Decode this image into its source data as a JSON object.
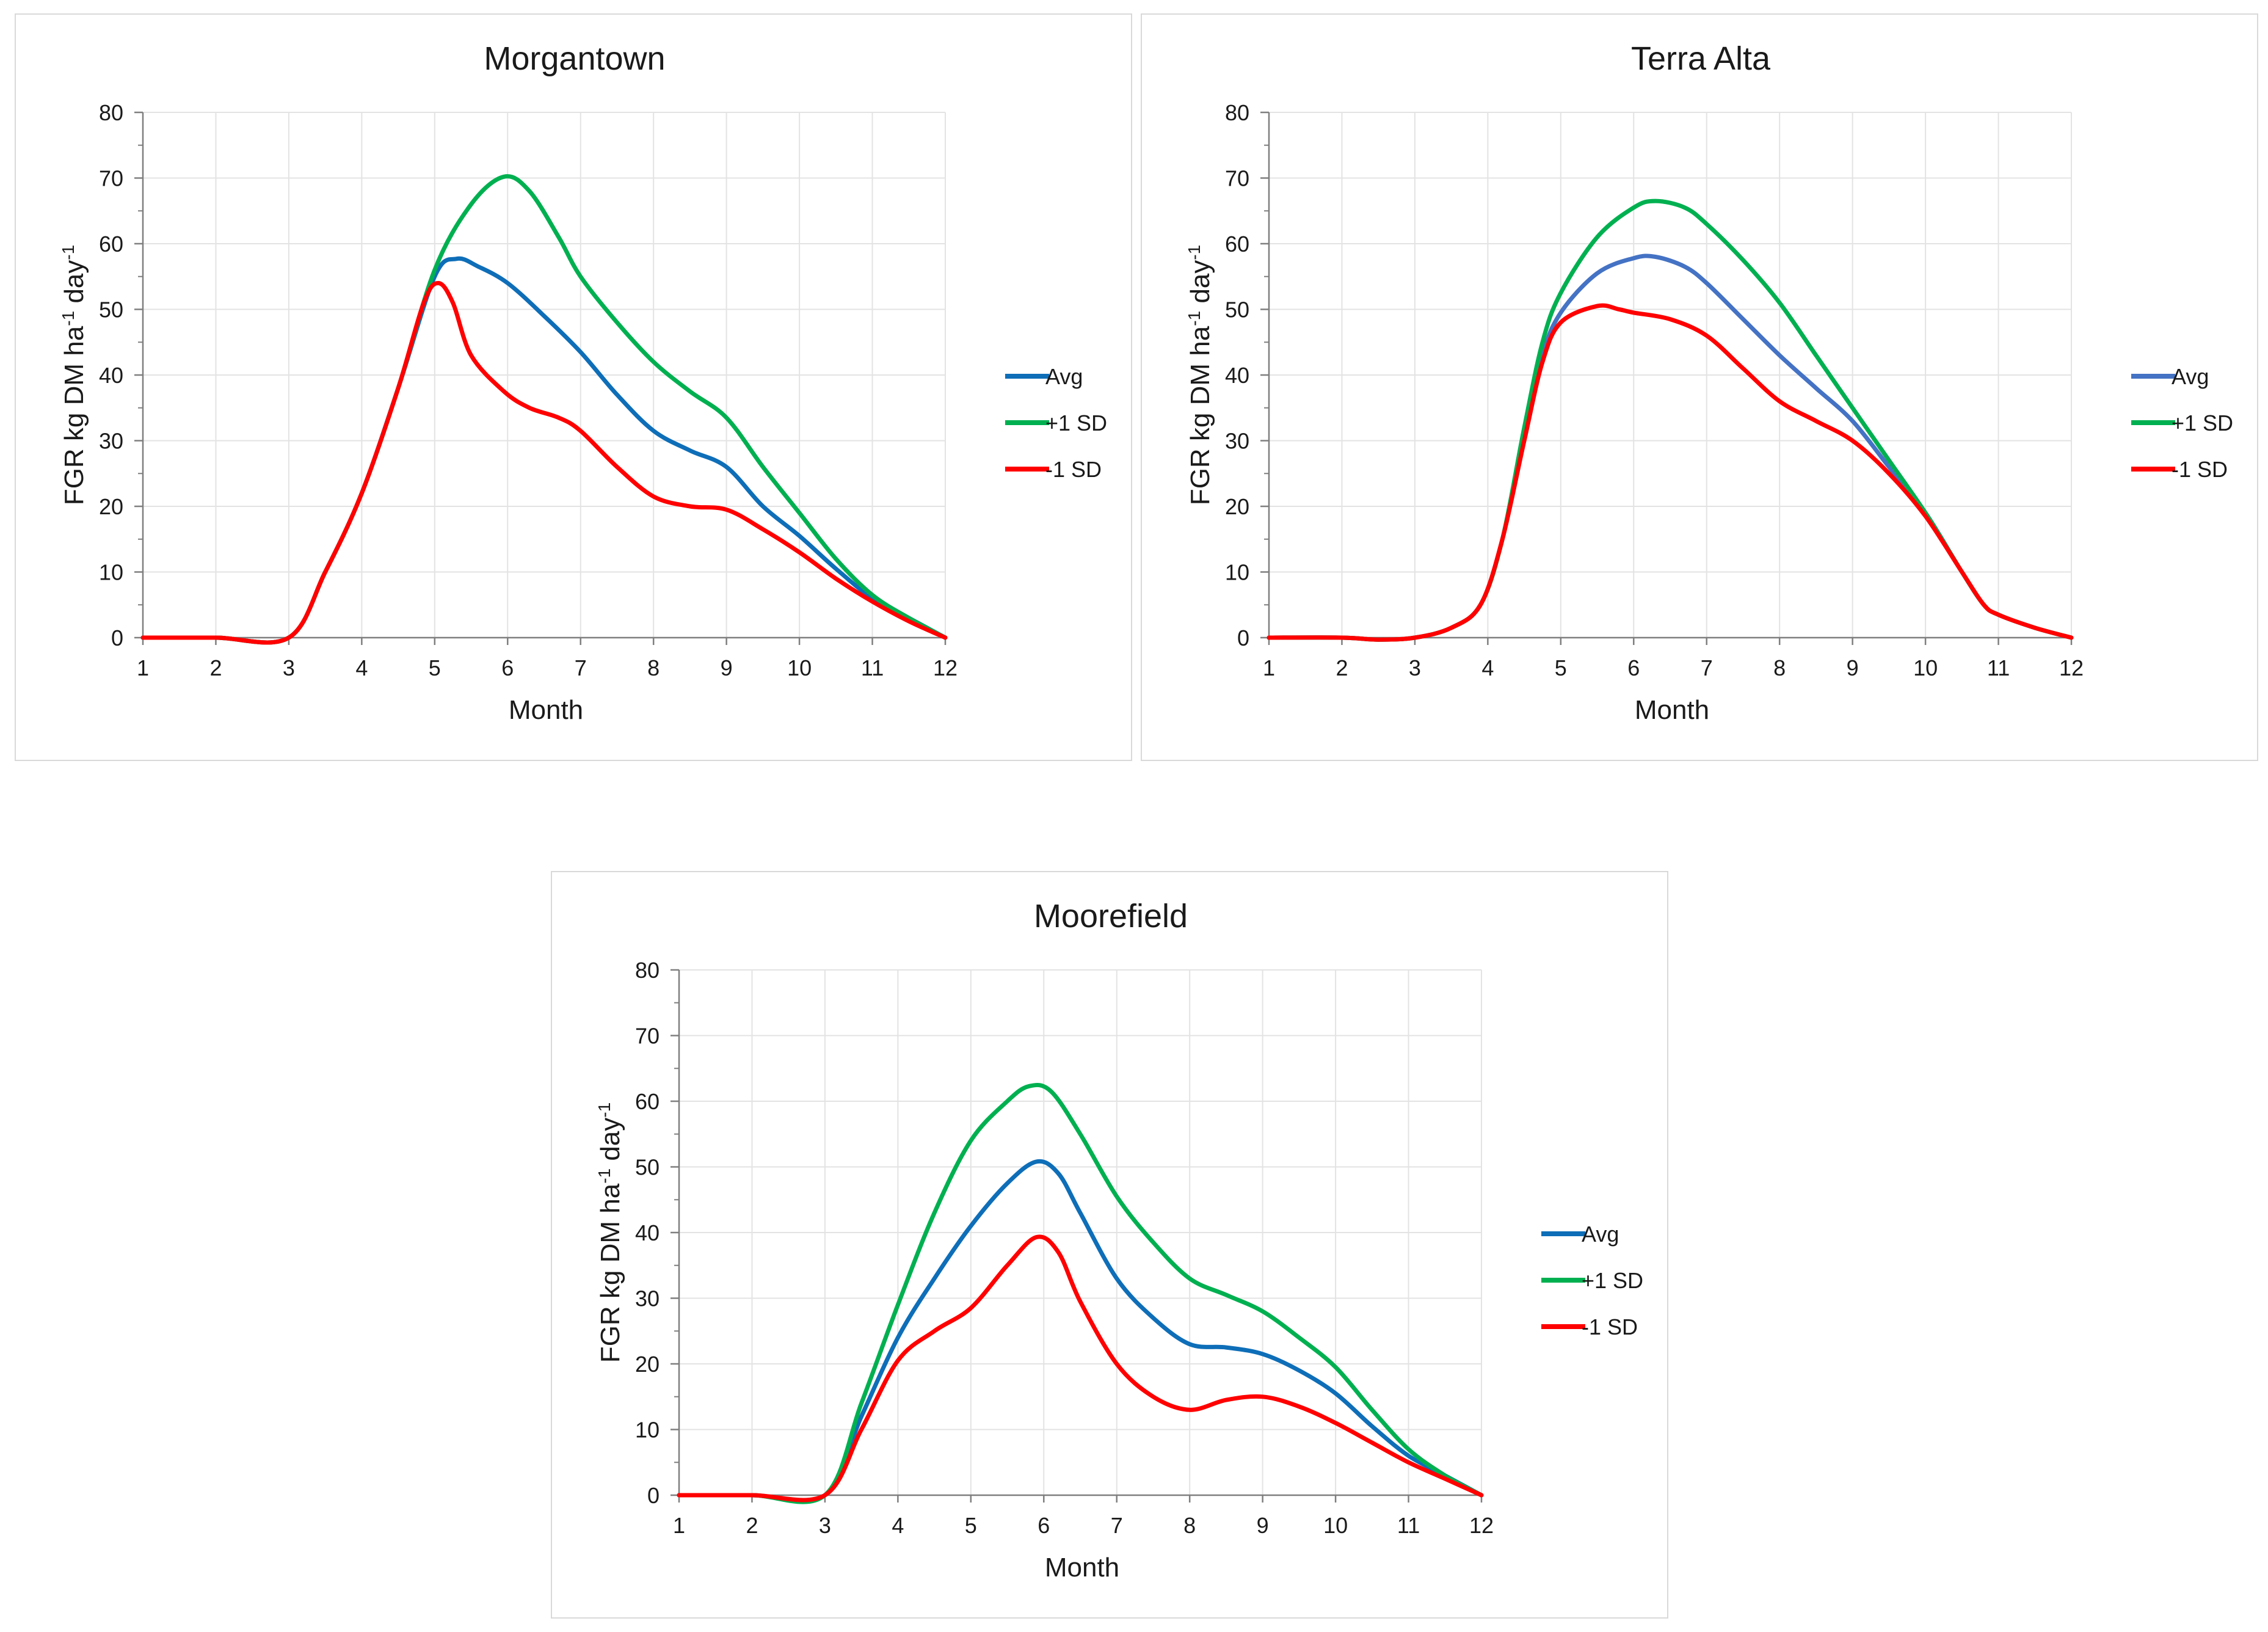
{
  "chart_data": [
    {
      "type": "line",
      "title": "Morgantown",
      "xlabel": "Month",
      "ylabel": "FGR kg DM ha",
      "ylabel_sup1": "-1",
      "ylabel_mid": " day",
      "ylabel_sup2": "-1",
      "xlim": [
        1,
        12
      ],
      "ylim": [
        0,
        80
      ],
      "x_ticks": [
        "1",
        "2",
        "3",
        "4",
        "5",
        "6",
        "7",
        "8",
        "9",
        "10",
        "11",
        "12"
      ],
      "y_ticks": [
        "0",
        "10",
        "20",
        "30",
        "40",
        "50",
        "60",
        "70",
        "80"
      ],
      "grid": true,
      "legend_position": "right",
      "series": [
        {
          "name": "Avg",
          "color": "#0e6eb8",
          "points": [
            [
              1,
              0
            ],
            [
              2,
              0
            ],
            [
              3,
              0
            ],
            [
              3.5,
              10
            ],
            [
              4,
              22
            ],
            [
              4.5,
              38
            ],
            [
              5,
              55
            ],
            [
              5.3,
              57.7
            ],
            [
              5.6,
              56.5
            ],
            [
              6,
              54
            ],
            [
              6.5,
              49
            ],
            [
              7,
              43.5
            ],
            [
              7.5,
              37
            ],
            [
              8,
              31.5
            ],
            [
              8.5,
              28.5
            ],
            [
              9,
              26
            ],
            [
              9.5,
              20
            ],
            [
              10,
              15.5
            ],
            [
              10.5,
              10.5
            ],
            [
              11,
              6
            ],
            [
              11.5,
              3
            ],
            [
              12,
              0
            ]
          ]
        },
        {
          "name": "+1 SD",
          "color": "#00b050",
          "points": [
            [
              1,
              0
            ],
            [
              2,
              0
            ],
            [
              3,
              0
            ],
            [
              3.5,
              10
            ],
            [
              4,
              22
            ],
            [
              4.5,
              38
            ],
            [
              5,
              56
            ],
            [
              5.5,
              66
            ],
            [
              5.95,
              70.2
            ],
            [
              6.3,
              68
            ],
            [
              6.7,
              61
            ],
            [
              7,
              55
            ],
            [
              7.5,
              48
            ],
            [
              8,
              42
            ],
            [
              8.5,
              37.5
            ],
            [
              9,
              33.5
            ],
            [
              9.5,
              26
            ],
            [
              10,
              19
            ],
            [
              10.5,
              12
            ],
            [
              11,
              6.5
            ],
            [
              11.5,
              3
            ],
            [
              12,
              0
            ]
          ]
        },
        {
          "name": "-1 SD",
          "color": "#ff0000",
          "points": [
            [
              1,
              0
            ],
            [
              2,
              0
            ],
            [
              3,
              0
            ],
            [
              3.5,
              10
            ],
            [
              4,
              22
            ],
            [
              4.5,
              38
            ],
            [
              4.85,
              51
            ],
            [
              5.05,
              54
            ],
            [
              5.25,
              51
            ],
            [
              5.5,
              43
            ],
            [
              5.95,
              37.5
            ],
            [
              6.3,
              35
            ],
            [
              6.7,
              33.5
            ],
            [
              7,
              31.5
            ],
            [
              7.5,
              26
            ],
            [
              8,
              21.5
            ],
            [
              8.5,
              20
            ],
            [
              9,
              19.5
            ],
            [
              9.5,
              16.5
            ],
            [
              10,
              13
            ],
            [
              10.5,
              9
            ],
            [
              11,
              5.5
            ],
            [
              11.5,
              2.5
            ],
            [
              12,
              0
            ]
          ]
        }
      ]
    },
    {
      "type": "line",
      "title": "Terra Alta",
      "xlabel": "Month",
      "ylabel": "FGR kg DM ha",
      "ylabel_sup1": "-1",
      "ylabel_mid": " day",
      "ylabel_sup2": "-1",
      "xlim": [
        1,
        12
      ],
      "ylim": [
        0,
        80
      ],
      "x_ticks": [
        "1",
        "2",
        "3",
        "4",
        "5",
        "6",
        "7",
        "8",
        "9",
        "10",
        "11",
        "12"
      ],
      "y_ticks": [
        "0",
        "10",
        "20",
        "30",
        "40",
        "50",
        "60",
        "70",
        "80"
      ],
      "grid": true,
      "legend_position": "right",
      "series": [
        {
          "name": "Avg",
          "color": "#4472c4",
          "points": [
            [
              1,
              0
            ],
            [
              2,
              0
            ],
            [
              2.5,
              -0.3
            ],
            [
              3,
              0
            ],
            [
              3.5,
              1.5
            ],
            [
              3.9,
              5
            ],
            [
              4.2,
              15
            ],
            [
              4.5,
              31
            ],
            [
              4.75,
              43
            ],
            [
              5,
              49.5
            ],
            [
              5.5,
              55.5
            ],
            [
              6,
              57.8
            ],
            [
              6.3,
              58
            ],
            [
              6.7,
              56.5
            ],
            [
              7,
              54
            ],
            [
              7.5,
              48.5
            ],
            [
              8,
              43
            ],
            [
              8.5,
              38
            ],
            [
              9,
              33
            ],
            [
              9.5,
              26
            ],
            [
              10,
              19
            ],
            [
              10.5,
              10
            ],
            [
              10.8,
              5
            ],
            [
              11,
              3.5
            ],
            [
              11.5,
              1.5
            ],
            [
              12,
              0
            ]
          ]
        },
        {
          "name": "+1 SD",
          "color": "#00b050",
          "points": [
            [
              1,
              0
            ],
            [
              2,
              0
            ],
            [
              2.5,
              -0.3
            ],
            [
              3,
              0
            ],
            [
              3.5,
              1.5
            ],
            [
              3.9,
              5
            ],
            [
              4.2,
              15
            ],
            [
              4.5,
              32
            ],
            [
              4.75,
              45
            ],
            [
              5,
              52.5
            ],
            [
              5.5,
              61
            ],
            [
              6,
              65.5
            ],
            [
              6.3,
              66.5
            ],
            [
              6.7,
              65.5
            ],
            [
              7,
              63
            ],
            [
              7.5,
              57.5
            ],
            [
              8,
              51
            ],
            [
              8.5,
              43
            ],
            [
              9,
              35
            ],
            [
              9.5,
              27
            ],
            [
              10,
              19
            ],
            [
              10.5,
              10
            ],
            [
              10.8,
              5
            ],
            [
              11,
              3.5
            ],
            [
              11.5,
              1.5
            ],
            [
              12,
              0
            ]
          ]
        },
        {
          "name": "-1 SD",
          "color": "#ff0000",
          "points": [
            [
              1,
              0
            ],
            [
              2,
              0
            ],
            [
              2.5,
              -0.3
            ],
            [
              3,
              0
            ],
            [
              3.5,
              1.5
            ],
            [
              3.9,
              5
            ],
            [
              4.2,
              15
            ],
            [
              4.5,
              30
            ],
            [
              4.75,
              42
            ],
            [
              5,
              48
            ],
            [
              5.5,
              50.5
            ],
            [
              5.8,
              50
            ],
            [
              6,
              49.5
            ],
            [
              6.5,
              48.5
            ],
            [
              7,
              46
            ],
            [
              7.5,
              41
            ],
            [
              8,
              36
            ],
            [
              8.5,
              33
            ],
            [
              9,
              30
            ],
            [
              9.5,
              25
            ],
            [
              10,
              18.5
            ],
            [
              10.5,
              10
            ],
            [
              10.8,
              5
            ],
            [
              11,
              3.5
            ],
            [
              11.5,
              1.5
            ],
            [
              12,
              0
            ]
          ]
        }
      ]
    },
    {
      "type": "line",
      "title": "Moorefield",
      "xlabel": "Month",
      "ylabel": "FGR kg DM ha",
      "ylabel_sup1": "-1",
      "ylabel_mid": " day",
      "ylabel_sup2": "-1",
      "xlim": [
        1,
        12
      ],
      "ylim": [
        0,
        80
      ],
      "x_ticks": [
        "1",
        "2",
        "3",
        "4",
        "5",
        "6",
        "7",
        "8",
        "9",
        "10",
        "11",
        "12"
      ],
      "y_ticks": [
        "0",
        "10",
        "20",
        "30",
        "40",
        "50",
        "60",
        "70",
        "80"
      ],
      "grid": true,
      "legend_position": "right",
      "series": [
        {
          "name": "Avg",
          "color": "#0e6eb8",
          "points": [
            [
              1,
              0
            ],
            [
              2,
              0
            ],
            [
              3,
              0
            ],
            [
              3.5,
              12
            ],
            [
              4,
              24
            ],
            [
              4.5,
              33
            ],
            [
              5,
              41
            ],
            [
              5.5,
              47.5
            ],
            [
              5.9,
              50.8
            ],
            [
              6.2,
              49
            ],
            [
              6.5,
              43
            ],
            [
              7,
              33
            ],
            [
              7.5,
              27
            ],
            [
              8,
              23
            ],
            [
              8.5,
              22.5
            ],
            [
              9,
              21.5
            ],
            [
              9.5,
              19
            ],
            [
              10,
              15.5
            ],
            [
              10.5,
              10.5
            ],
            [
              11,
              6
            ],
            [
              11.5,
              3
            ],
            [
              12,
              0
            ]
          ]
        },
        {
          "name": "+1 SD",
          "color": "#00b050",
          "points": [
            [
              1,
              0
            ],
            [
              2,
              0
            ],
            [
              3,
              0
            ],
            [
              3.5,
              14
            ],
            [
              4,
              29
            ],
            [
              4.5,
              43
            ],
            [
              5,
              54
            ],
            [
              5.5,
              60
            ],
            [
              5.8,
              62.3
            ],
            [
              6.1,
              61.5
            ],
            [
              6.5,
              55
            ],
            [
              7,
              45.5
            ],
            [
              7.5,
              38.5
            ],
            [
              8,
              33
            ],
            [
              8.5,
              30.5
            ],
            [
              9,
              28
            ],
            [
              9.5,
              24
            ],
            [
              10,
              19.5
            ],
            [
              10.5,
              13
            ],
            [
              11,
              7
            ],
            [
              11.5,
              3
            ],
            [
              12,
              0
            ]
          ]
        },
        {
          "name": "-1 SD",
          "color": "#ff0000",
          "points": [
            [
              1,
              0
            ],
            [
              2,
              0
            ],
            [
              3,
              0
            ],
            [
              3.5,
              10
            ],
            [
              4,
              20.5
            ],
            [
              4.5,
              25
            ],
            [
              5,
              28.5
            ],
            [
              5.5,
              35
            ],
            [
              5.9,
              39.3
            ],
            [
              6.2,
              37
            ],
            [
              6.5,
              29.5
            ],
            [
              7,
              20
            ],
            [
              7.5,
              15
            ],
            [
              8,
              13
            ],
            [
              8.5,
              14.5
            ],
            [
              9,
              15
            ],
            [
              9.5,
              13.5
            ],
            [
              10,
              11
            ],
            [
              10.5,
              8
            ],
            [
              11,
              5
            ],
            [
              11.5,
              2.5
            ],
            [
              12,
              0
            ]
          ]
        }
      ]
    }
  ]
}
